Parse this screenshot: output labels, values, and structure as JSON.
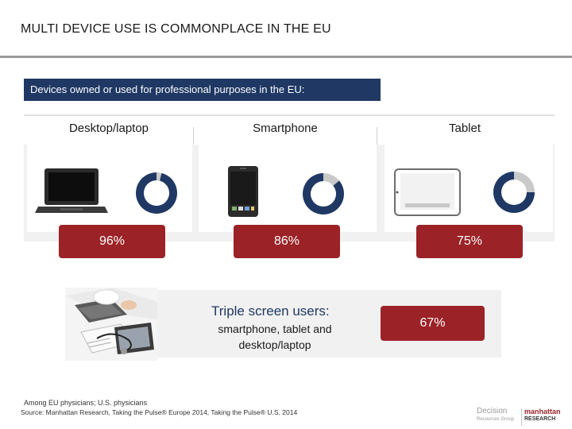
{
  "slide": {
    "title": "MULTI DEVICE USE IS COMMONPLACE IN THE EU",
    "subtitle": "Devices owned or used for professional purposes in the EU:"
  },
  "devices": [
    {
      "label": "Desktop/laptop",
      "percent_label": "96%",
      "share": 0.96,
      "icon": "laptop-icon"
    },
    {
      "label": "Smartphone",
      "percent_label": "86%",
      "share": 0.86,
      "icon": "smartphone-icon"
    },
    {
      "label": "Tablet",
      "percent_label": "75%",
      "share": 0.75,
      "icon": "tablet-icon"
    }
  ],
  "triple": {
    "title": "Triple screen users:",
    "text": "smartphone, tablet and desktop/laptop",
    "percent_label": "67%"
  },
  "footnotes": {
    "note": "Among EU physicians; U.S. physicians",
    "source": "Source: Manhattan Research, Taking the Pulse® Europe 2014, Taking the Pulse® U.S. 2014"
  },
  "logos": {
    "decision_line1": "Decision",
    "decision_line2": "Resources Group",
    "manhattan_line1": "manhattan",
    "manhattan_line2": "RESEARCH"
  },
  "colors": {
    "navy": "#1f3864",
    "accent_red": "#9b2226",
    "donut_rest": "#c9c9c9"
  }
}
